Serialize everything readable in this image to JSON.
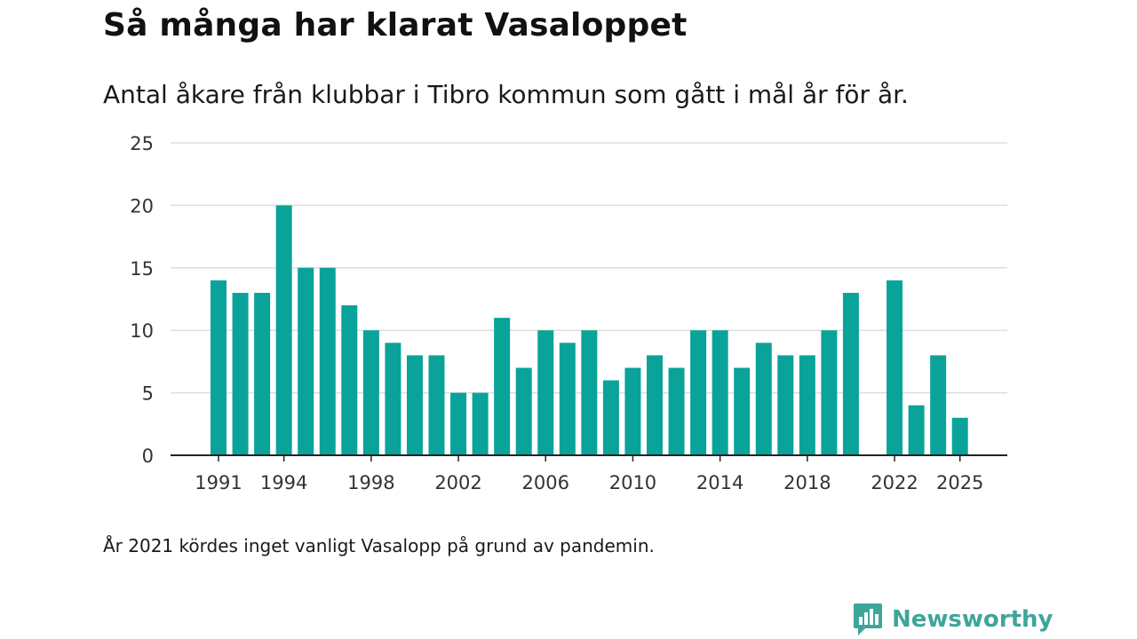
{
  "title": "Så många har klarat Vasaloppet",
  "subtitle": "Antal åkare från klubbar i Tibro kommun som gått i mål år för år.",
  "note": "År 2021 kördes inget vanligt Vasalopp på grund av pandemin.",
  "brand": {
    "name": "Newsworthy",
    "icon": "newsworthy-logo-icon",
    "color": "#3fa59b"
  },
  "colors": {
    "bar": "#0aa39a",
    "grid": "#dddddd",
    "axis": "#222222"
  },
  "chart_data": {
    "type": "bar",
    "title": "Så många har klarat Vasaloppet",
    "xlabel": "",
    "ylabel": "",
    "ylim": [
      0,
      25
    ],
    "yticks": [
      0,
      5,
      10,
      15,
      20,
      25
    ],
    "xticks": [
      "1991",
      "1994",
      "1998",
      "2002",
      "2006",
      "2010",
      "2014",
      "2018",
      "2022",
      "2025"
    ],
    "grid": true,
    "categories": [
      "1991",
      "1992",
      "1993",
      "1994",
      "1995",
      "1996",
      "1997",
      "1998",
      "1999",
      "2000",
      "2001",
      "2002",
      "2003",
      "2004",
      "2005",
      "2006",
      "2007",
      "2008",
      "2009",
      "2010",
      "2011",
      "2012",
      "2013",
      "2014",
      "2015",
      "2016",
      "2017",
      "2018",
      "2019",
      "2020",
      "2021",
      "2022",
      "2023",
      "2024",
      "2025"
    ],
    "values": [
      14,
      13,
      13,
      20,
      15,
      15,
      12,
      10,
      9,
      8,
      8,
      5,
      5,
      11,
      7,
      10,
      9,
      10,
      6,
      7,
      8,
      7,
      10,
      10,
      7,
      9,
      8,
      8,
      10,
      13,
      null,
      14,
      4,
      8,
      3
    ]
  }
}
